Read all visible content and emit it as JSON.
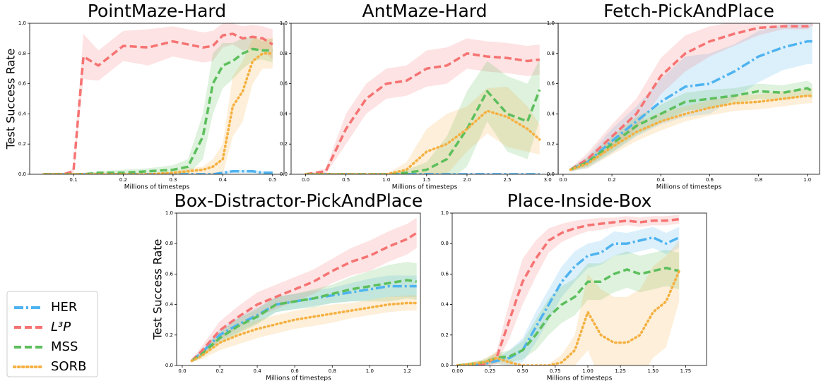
{
  "chart_data": [
    {
      "type": "line",
      "title": "PointMaze-Hard",
      "xlabel": "Millions of timesteps",
      "ylabel": "Test Success Rate",
      "xlim": [
        0.012,
        0.523
      ],
      "xticks": [
        0.1,
        0.2,
        0.3,
        0.4,
        0.5
      ],
      "ylim": [
        0,
        1
      ],
      "yticks": [
        {
          "value": 0,
          "label": "0.0"
        },
        0.2,
        0.4,
        0.6,
        0.8,
        {
          "value": 1,
          "label": "1.0"
        }
      ],
      "x": [
        0.04,
        0.08,
        0.1,
        0.12,
        0.15,
        0.2,
        0.25,
        0.3,
        0.33,
        0.36,
        0.38,
        0.4,
        0.42,
        0.44,
        0.46,
        0.48,
        0.5
      ],
      "series": [
        {
          "name": "HER",
          "color": "#4eb3f0",
          "dash": "dashdot",
          "values": [
            0,
            0,
            0,
            0,
            0,
            0,
            0,
            0,
            0,
            0,
            0,
            0.01,
            0.02,
            0.02,
            0.02,
            0.01,
            0.01
          ],
          "errors": [
            0,
            0,
            0,
            0,
            0,
            0,
            0,
            0,
            0,
            0,
            0,
            0.01,
            0.01,
            0.01,
            0.01,
            0.01,
            0.01
          ]
        },
        {
          "name": "L³P",
          "color": "#f67373",
          "dash": "dashed",
          "values": [
            0,
            0,
            0.02,
            0.78,
            0.72,
            0.85,
            0.84,
            0.88,
            0.86,
            0.84,
            0.85,
            0.92,
            0.93,
            0.9,
            0.91,
            0.9,
            0.86
          ],
          "errors": [
            0,
            0,
            0.02,
            0.15,
            0.1,
            0.1,
            0.12,
            0.1,
            0.1,
            0.1,
            0.1,
            0.08,
            0.07,
            0.08,
            0.08,
            0.08,
            0.1
          ]
        },
        {
          "name": "MSS",
          "color": "#5cbf5c",
          "dash": "dashed",
          "values": [
            0,
            0,
            0,
            0,
            0.01,
            0.01,
            0.02,
            0.03,
            0.05,
            0.25,
            0.6,
            0.72,
            0.75,
            0.8,
            0.83,
            0.82,
            0.82
          ],
          "errors": [
            0,
            0,
            0,
            0,
            0.01,
            0.02,
            0.02,
            0.03,
            0.05,
            0.15,
            0.2,
            0.15,
            0.12,
            0.1,
            0.08,
            0.06,
            0.08
          ]
        },
        {
          "name": "SORB",
          "color": "#f5b041",
          "dash": "dotted",
          "values": [
            0,
            0,
            0,
            0,
            0,
            0,
            0,
            0.01,
            0.02,
            0.03,
            0.05,
            0.1,
            0.45,
            0.55,
            0.75,
            0.8,
            0.8
          ],
          "errors": [
            0,
            0,
            0,
            0,
            0,
            0,
            0,
            0.01,
            0.02,
            0.02,
            0.05,
            0.1,
            0.2,
            0.2,
            0.15,
            0.1,
            0.1
          ]
        }
      ]
    },
    {
      "type": "line",
      "title": "AntMaze-Hard",
      "xlabel": "Millions of timesteps",
      "xlim": [
        -0.18,
        3.13
      ],
      "xticks": [
        {
          "value": 0,
          "label": "0.0"
        },
        0.5,
        {
          "value": 1,
          "label": "1.0"
        },
        1.5,
        {
          "value": 2,
          "label": "2.0"
        },
        2.5,
        {
          "value": 3,
          "label": "3.0"
        }
      ],
      "ylim": [
        0,
        1
      ],
      "yticks": [
        {
          "value": 0,
          "label": "0.0"
        },
        0.2,
        0.4,
        0.6,
        0.8,
        {
          "value": 1,
          "label": "1.0"
        }
      ],
      "x": [
        0,
        0.25,
        0.5,
        0.75,
        1.0,
        1.25,
        1.5,
        1.75,
        2.0,
        2.25,
        2.5,
        2.75,
        2.9
      ],
      "series": [
        {
          "name": "HER",
          "color": "#4eb3f0",
          "dash": "dashdot",
          "values": [
            0,
            0,
            0,
            0,
            0,
            0,
            0,
            0,
            0,
            0,
            0,
            0,
            0
          ],
          "errors": [
            0.005,
            0.005,
            0.005,
            0.005,
            0.005,
            0.005,
            0.005,
            0.005,
            0.005,
            0.005,
            0.005,
            0.005,
            0.005
          ]
        },
        {
          "name": "L³P",
          "color": "#f67373",
          "dash": "dashed",
          "values": [
            0,
            0.02,
            0.3,
            0.5,
            0.6,
            0.62,
            0.7,
            0.72,
            0.8,
            0.78,
            0.77,
            0.75,
            0.76
          ],
          "errors": [
            0,
            0.02,
            0.1,
            0.1,
            0.1,
            0.1,
            0.12,
            0.12,
            0.1,
            0.1,
            0.1,
            0.1,
            0.1
          ]
        },
        {
          "name": "MSS",
          "color": "#5cbf5c",
          "dash": "dashed",
          "values": [
            0,
            0,
            0,
            0,
            0,
            0.01,
            0.03,
            0.1,
            0.3,
            0.55,
            0.4,
            0.35,
            0.56
          ],
          "errors": [
            0,
            0,
            0,
            0,
            0,
            0.02,
            0.05,
            0.15,
            0.25,
            0.2,
            0.25,
            0.25,
            0.2
          ]
        },
        {
          "name": "SORB",
          "color": "#f5b041",
          "dash": "dotted",
          "values": [
            0,
            0,
            0,
            0,
            0,
            0.03,
            0.15,
            0.2,
            0.3,
            0.42,
            0.38,
            0.3,
            0.23
          ],
          "errors": [
            0,
            0,
            0,
            0,
            0,
            0.05,
            0.15,
            0.2,
            0.15,
            0.15,
            0.2,
            0.15,
            0.1
          ]
        }
      ]
    },
    {
      "type": "line",
      "title": "Fetch-PickAndPlace",
      "xlabel": "Millions of timesteps",
      "xlim": [
        -0.02,
        1.05
      ],
      "xticks": [
        {
          "value": 0,
          "label": "0.0"
        },
        0.2,
        0.4,
        0.6,
        0.8,
        {
          "value": 1,
          "label": "1.0"
        }
      ],
      "ylim": [
        0,
        1
      ],
      "yticks": [
        {
          "value": 0,
          "label": "0.0"
        },
        0.2,
        0.4,
        0.6,
        0.8,
        {
          "value": 1,
          "label": "1.0"
        }
      ],
      "x": [
        0.03,
        0.1,
        0.2,
        0.3,
        0.4,
        0.5,
        0.6,
        0.7,
        0.8,
        0.9,
        1.0,
        1.02
      ],
      "series": [
        {
          "name": "HER",
          "color": "#4eb3f0",
          "dash": "dashdot",
          "values": [
            0.03,
            0.08,
            0.22,
            0.35,
            0.48,
            0.58,
            0.6,
            0.68,
            0.78,
            0.84,
            0.88,
            0.88
          ],
          "errors": [
            0.01,
            0.04,
            0.08,
            0.1,
            0.15,
            0.2,
            0.2,
            0.18,
            0.17,
            0.15,
            0.15,
            0.15
          ]
        },
        {
          "name": "L³P",
          "color": "#f67373",
          "dash": "dashed",
          "values": [
            0.03,
            0.1,
            0.25,
            0.4,
            0.65,
            0.8,
            0.88,
            0.93,
            0.97,
            0.98,
            0.98,
            0.99
          ],
          "errors": [
            0.01,
            0.04,
            0.08,
            0.1,
            0.12,
            0.12,
            0.1,
            0.08,
            0.05,
            0.02,
            0.02,
            0.01
          ]
        },
        {
          "name": "MSS",
          "color": "#5cbf5c",
          "dash": "dashed",
          "values": [
            0.03,
            0.08,
            0.2,
            0.32,
            0.4,
            0.48,
            0.5,
            0.52,
            0.55,
            0.54,
            0.57,
            0.55
          ],
          "errors": [
            0.01,
            0.03,
            0.05,
            0.06,
            0.06,
            0.06,
            0.06,
            0.05,
            0.05,
            0.05,
            0.05,
            0.05
          ]
        },
        {
          "name": "SORB",
          "color": "#f5b041",
          "dash": "dotted",
          "values": [
            0.03,
            0.07,
            0.18,
            0.28,
            0.35,
            0.4,
            0.44,
            0.47,
            0.48,
            0.5,
            0.52,
            0.52
          ],
          "errors": [
            0.01,
            0.03,
            0.05,
            0.06,
            0.06,
            0.05,
            0.05,
            0.05,
            0.05,
            0.05,
            0.05,
            0.05
          ]
        }
      ]
    },
    {
      "type": "line",
      "title": "Box-Distractor-PickAndPlace",
      "xlabel": "Millions of timesteps",
      "ylabel": "Test Success Rate",
      "xlim": [
        -0.03,
        1.27
      ],
      "xticks": [
        {
          "value": 0,
          "label": "0.0"
        },
        0.2,
        0.4,
        0.6,
        0.8,
        {
          "value": 1,
          "label": "1.0"
        },
        1.2
      ],
      "ylim": [
        0,
        1
      ],
      "yticks": [
        {
          "value": 0,
          "label": "0.0"
        },
        0.2,
        0.4,
        0.6,
        0.8,
        {
          "value": 1,
          "label": "1.0"
        }
      ],
      "x": [
        0.05,
        0.1,
        0.2,
        0.3,
        0.4,
        0.5,
        0.6,
        0.7,
        0.8,
        0.9,
        1.0,
        1.1,
        1.2,
        1.25
      ],
      "series": [
        {
          "name": "HER",
          "color": "#4eb3f0",
          "dash": "dashdot",
          "values": [
            0.03,
            0.08,
            0.2,
            0.27,
            0.33,
            0.4,
            0.42,
            0.44,
            0.46,
            0.48,
            0.5,
            0.52,
            0.52,
            0.52
          ],
          "errors": [
            0.01,
            0.02,
            0.04,
            0.05,
            0.05,
            0.05,
            0.05,
            0.05,
            0.05,
            0.06,
            0.07,
            0.07,
            0.07,
            0.07
          ]
        },
        {
          "name": "L³P",
          "color": "#f67373",
          "dash": "dashed",
          "values": [
            0.03,
            0.09,
            0.23,
            0.32,
            0.4,
            0.45,
            0.5,
            0.55,
            0.62,
            0.68,
            0.72,
            0.78,
            0.83,
            0.87
          ],
          "errors": [
            0.01,
            0.03,
            0.06,
            0.07,
            0.08,
            0.08,
            0.08,
            0.08,
            0.08,
            0.09,
            0.1,
            0.1,
            0.1,
            0.1
          ]
        },
        {
          "name": "MSS",
          "color": "#5cbf5c",
          "dash": "dashed",
          "values": [
            0.03,
            0.07,
            0.18,
            0.26,
            0.32,
            0.4,
            0.42,
            0.44,
            0.47,
            0.5,
            0.52,
            0.54,
            0.56,
            0.55
          ],
          "errors": [
            0.01,
            0.02,
            0.04,
            0.05,
            0.05,
            0.05,
            0.05,
            0.06,
            0.06,
            0.08,
            0.1,
            0.12,
            0.12,
            0.12
          ]
        },
        {
          "name": "SORB",
          "color": "#f5b041",
          "dash": "dotted",
          "values": [
            0.03,
            0.06,
            0.15,
            0.2,
            0.24,
            0.27,
            0.3,
            0.32,
            0.34,
            0.36,
            0.38,
            0.4,
            0.41,
            0.41
          ],
          "errors": [
            0.01,
            0.02,
            0.05,
            0.06,
            0.06,
            0.06,
            0.06,
            0.06,
            0.06,
            0.05,
            0.05,
            0.05,
            0.05,
            0.05
          ]
        }
      ]
    },
    {
      "type": "line",
      "title": "Place-Inside-Box",
      "xlabel": "Millions of timesteps",
      "xlim": [
        -0.04,
        1.91
      ],
      "xticks": [
        {
          "value": 0,
          "label": "0.00"
        },
        0.25,
        {
          "value": 0.5,
          "label": "0.50"
        },
        0.75,
        {
          "value": 1,
          "label": "1.00"
        },
        1.25,
        {
          "value": 1.5,
          "label": "1.50"
        },
        1.75
      ],
      "ylim": [
        0,
        1
      ],
      "yticks": [
        {
          "value": 0,
          "label": "0.0"
        },
        0.2,
        0.4,
        0.6,
        0.8,
        {
          "value": 1,
          "label": "1.0"
        }
      ],
      "x": [
        0,
        0.2,
        0.3,
        0.4,
        0.5,
        0.6,
        0.7,
        0.8,
        0.9,
        1.0,
        1.1,
        1.2,
        1.3,
        1.4,
        1.5,
        1.6,
        1.7
      ],
      "series": [
        {
          "name": "HER",
          "color": "#4eb3f0",
          "dash": "dashdot",
          "values": [
            0,
            0.01,
            0.03,
            0.05,
            0.1,
            0.25,
            0.4,
            0.55,
            0.65,
            0.72,
            0.74,
            0.8,
            0.8,
            0.82,
            0.84,
            0.8,
            0.84
          ],
          "errors": [
            0,
            0.01,
            0.02,
            0.05,
            0.08,
            0.1,
            0.1,
            0.1,
            0.1,
            0.08,
            0.08,
            0.08,
            0.07,
            0.07,
            0.07,
            0.07,
            0.07
          ]
        },
        {
          "name": "L³P",
          "color": "#f67373",
          "dash": "dashed",
          "values": [
            0,
            0.01,
            0.05,
            0.3,
            0.55,
            0.7,
            0.82,
            0.87,
            0.9,
            0.92,
            0.93,
            0.94,
            0.95,
            0.94,
            0.95,
            0.95,
            0.96
          ],
          "errors": [
            0,
            0.01,
            0.04,
            0.12,
            0.15,
            0.12,
            0.08,
            0.06,
            0.05,
            0.04,
            0.04,
            0.03,
            0.03,
            0.03,
            0.03,
            0.03,
            0.03
          ]
        },
        {
          "name": "MSS",
          "color": "#5cbf5c",
          "dash": "dashed",
          "values": [
            0,
            0.02,
            0.05,
            0.06,
            0.1,
            0.2,
            0.32,
            0.4,
            0.45,
            0.55,
            0.55,
            0.6,
            0.63,
            0.6,
            0.62,
            0.64,
            0.62
          ],
          "errors": [
            0,
            0.02,
            0.03,
            0.04,
            0.06,
            0.1,
            0.12,
            0.12,
            0.12,
            0.12,
            0.12,
            0.12,
            0.12,
            0.12,
            0.12,
            0.12,
            0.12
          ]
        },
        {
          "name": "SORB",
          "color": "#f5b041",
          "dash": "dotted",
          "values": [
            0,
            0.02,
            0.05,
            0.02,
            0,
            0,
            0,
            0.02,
            0.1,
            0.35,
            0.2,
            0.15,
            0.15,
            0.2,
            0.35,
            0.42,
            0.62
          ],
          "errors": [
            0,
            0.02,
            0.04,
            0.02,
            0,
            0,
            0.01,
            0.05,
            0.1,
            0.25,
            0.3,
            0.3,
            0.3,
            0.3,
            0.3,
            0.3,
            0.2
          ]
        }
      ]
    }
  ]
}
